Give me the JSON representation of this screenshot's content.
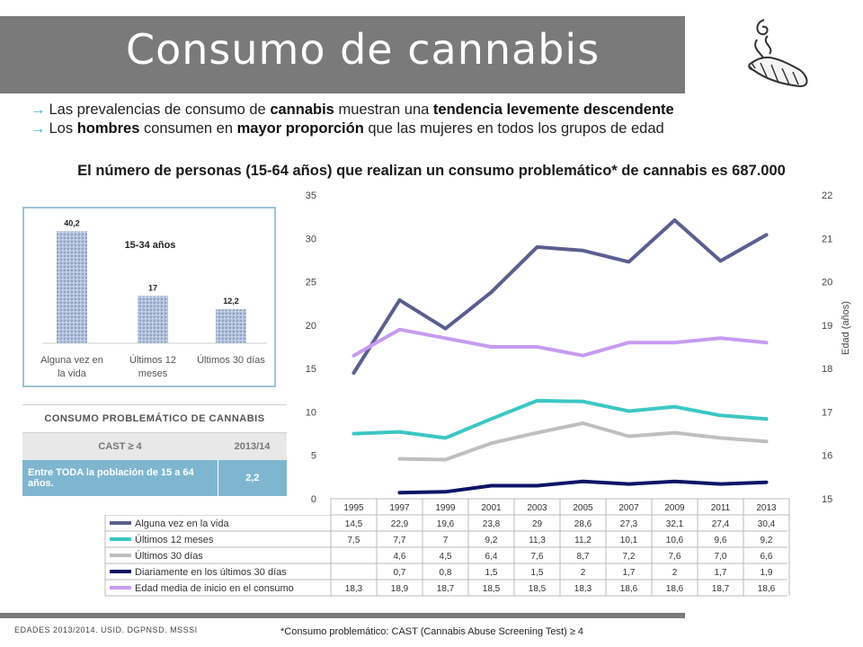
{
  "title": "Consumo de cannabis",
  "bullets": [
    {
      "pre": "Las prevalencias de consumo de ",
      "b1": "cannabis",
      "mid": " muestran una ",
      "b2": "tendencia levemente descendente",
      "post": ""
    },
    {
      "pre": "Los ",
      "b1": "hombres",
      "mid": " consumen en ",
      "b2": "mayor proporción",
      "post": " que las mujeres en todos los grupos de edad"
    }
  ],
  "subtitle": "El número de personas (15-64 años) que realizan un consumo problemático* de cannabis es 687.000",
  "inset_chart": {
    "title": "15-34 años",
    "categories": [
      "Alguna vez en la vida",
      "Últimos 12 meses",
      "Últimos 30 días"
    ],
    "values": [
      40.2,
      17,
      12.2
    ],
    "value_labels": [
      "40,2",
      "17",
      "12,2"
    ]
  },
  "prob_table": {
    "title": "CONSUMO PROBLEMÁTICO DE CANNABIS",
    "col1": "CAST ≥ 4",
    "col2": "2013/14",
    "row_label": "Entre TODA la población de 15 a 64 años.",
    "row_value": "2,2"
  },
  "chart_data": {
    "type": "line",
    "x": [
      "1995",
      "1997",
      "1999",
      "2001",
      "2003",
      "2005",
      "2007",
      "2009",
      "2011",
      "2013"
    ],
    "y_left_ticks": [
      "0",
      "5",
      "10",
      "15",
      "20",
      "25",
      "30",
      "35"
    ],
    "ylim": [
      0,
      35
    ],
    "y_right_ticks": [
      "15",
      "16",
      "17",
      "18",
      "19",
      "20",
      "21",
      "22"
    ],
    "y2lim": [
      15,
      22
    ],
    "y2label": "Edad (años)",
    "series": [
      {
        "name": "Alguna vez en la vida",
        "axis": "left",
        "color": "#5b5f8f",
        "values": [
          14.5,
          22.9,
          19.6,
          23.8,
          29,
          28.6,
          27.3,
          32.1,
          27.4,
          30.4
        ],
        "labels": [
          "14,5",
          "22,9",
          "19,6",
          "23,8",
          "29",
          "28,6",
          "27,3",
          "32,1",
          "27,4",
          "30,4"
        ]
      },
      {
        "name": "Últimos 12 meses",
        "axis": "left",
        "color": "#3cc7c3",
        "values": [
          7.5,
          7.7,
          7,
          9.2,
          11.3,
          11.2,
          10.1,
          10.6,
          9.6,
          9.2
        ],
        "labels": [
          "7,5",
          "7,7",
          "7",
          "9,2",
          "11,3",
          "11,2",
          "10,1",
          "10,6",
          "9,6",
          "9,2"
        ]
      },
      {
        "name": "Últimos 30 días",
        "axis": "left",
        "color": "#bfbfbf",
        "values": [
          null,
          4.6,
          4.5,
          6.4,
          7.6,
          8.7,
          7.2,
          7.6,
          7.0,
          6.6
        ],
        "labels": [
          "",
          "4,6",
          "4,5",
          "6,4",
          "7,6",
          "8,7",
          "7,2",
          "7,6",
          "7,0",
          "6,6"
        ]
      },
      {
        "name": "Diariamente en los últimos 30 días",
        "axis": "left",
        "color": "#0d1466",
        "values": [
          null,
          0.7,
          0.8,
          1.5,
          1.5,
          2,
          1.7,
          2,
          1.7,
          1.9
        ],
        "labels": [
          "",
          "0,7",
          "0,8",
          "1,5",
          "1,5",
          "2",
          "1,7",
          "2",
          "1,7",
          "1,9"
        ]
      },
      {
        "name": "Edad media de inicio en el consumo",
        "axis": "right",
        "color": "#c79bf0",
        "values": [
          18.3,
          18.9,
          18.7,
          18.5,
          18.5,
          18.3,
          18.6,
          18.6,
          18.7,
          18.6
        ],
        "labels": [
          "18,3",
          "18,9",
          "18,7",
          "18,5",
          "18,5",
          "18,3",
          "18,6",
          "18,6",
          "18,7",
          "18,6"
        ]
      }
    ]
  },
  "source": "EDADES 2013/2014. USID. DGPNSD. MSSSI",
  "footnote": "*Consumo problemático: CAST (Cannabis Abuse Screening Test) ≥ 4"
}
